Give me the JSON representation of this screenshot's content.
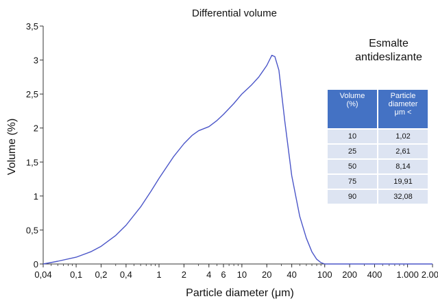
{
  "chart_data": {
    "type": "line",
    "title": "Differential volume",
    "xlabel": "Particle diameter (μm)",
    "ylabel": "Volume (%)",
    "x_scale": "log",
    "xlim": [
      0.04,
      2000
    ],
    "ylim": [
      0,
      3.5
    ],
    "x_ticks": [
      0.04,
      0.1,
      0.2,
      0.4,
      1,
      2,
      4,
      6,
      10,
      20,
      40,
      100,
      200,
      400,
      1000,
      2000
    ],
    "x_tick_labels": [
      "0,04",
      "0,1",
      "0,2",
      "0,4",
      "1",
      "2",
      "4",
      "6",
      "10",
      "20",
      "40",
      "100",
      "200",
      "400",
      "1.000",
      "2.000"
    ],
    "y_ticks": [
      0,
      0.5,
      1,
      1.5,
      2,
      2.5,
      3,
      3.5
    ],
    "y_tick_labels": [
      "0",
      "0,5",
      "1",
      "1,5",
      "2",
      "2,5",
      "3",
      "3,5"
    ],
    "grid": false,
    "annotation": [
      "Esmalte",
      "antideslizante"
    ],
    "series": [
      {
        "color": "#4a55c8",
        "x": [
          0.04,
          0.06,
          0.1,
          0.15,
          0.2,
          0.3,
          0.4,
          0.6,
          0.8,
          1,
          1.5,
          2,
          2.5,
          3,
          4,
          5,
          6,
          8,
          10,
          13,
          16,
          20,
          23,
          25,
          28,
          33,
          40,
          50,
          60,
          70,
          80,
          90,
          100,
          130,
          200,
          400,
          1000,
          2000
        ],
        "y": [
          0,
          0.04,
          0.1,
          0.18,
          0.26,
          0.42,
          0.57,
          0.84,
          1.07,
          1.26,
          1.58,
          1.77,
          1.89,
          1.96,
          2.02,
          2.11,
          2.2,
          2.36,
          2.5,
          2.63,
          2.75,
          2.92,
          3.07,
          3.05,
          2.85,
          2.1,
          1.3,
          0.7,
          0.38,
          0.18,
          0.07,
          0.02,
          0,
          0,
          0,
          0,
          0,
          0
        ]
      }
    ]
  },
  "table": {
    "headers": [
      "Volume\n(%)",
      "Particle\ndiameter\nμm <"
    ],
    "rows": [
      [
        "10",
        "1,02"
      ],
      [
        "25",
        "2,61"
      ],
      [
        "50",
        "8,14"
      ],
      [
        "75",
        "19,91"
      ],
      [
        "90",
        "32,08"
      ]
    ]
  }
}
